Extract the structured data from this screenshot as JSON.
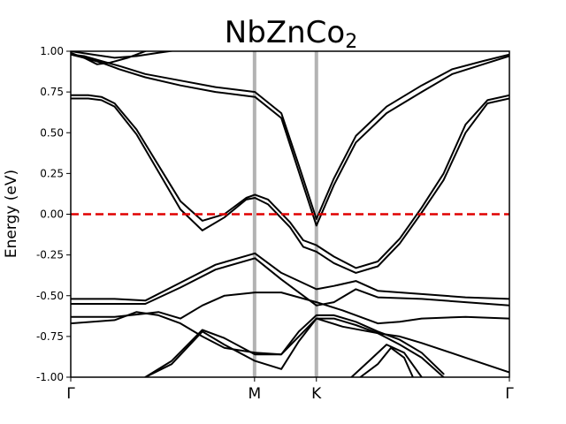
{
  "chart_data": {
    "type": "line",
    "title": "NbZnCo",
    "title_subscript": "2",
    "ylabel": "Energy (eV)",
    "ylim": [
      -1.0,
      1.0
    ],
    "yticks": [
      "-1.00",
      "-0.75",
      "-0.50",
      "-0.25",
      "0.00",
      "0.25",
      "0.50",
      "0.75",
      "1.00"
    ],
    "ytick_values": [
      -1.0,
      -0.75,
      -0.5,
      -0.25,
      0.0,
      0.25,
      0.5,
      0.75,
      1.0
    ],
    "xlim": [
      0,
      1
    ],
    "high_symmetry_points": [
      {
        "label": "Γ",
        "x": 0.0
      },
      {
        "label": "M",
        "x": 0.419
      },
      {
        "label": "K",
        "x": 0.56
      },
      {
        "label": "Γ",
        "x": 1.0
      }
    ],
    "fermi_level": 0.0,
    "colors": {
      "bands": "#000000",
      "fermi": "#e00000",
      "kpath": "#b3b3b3"
    },
    "grid": false,
    "series": [
      {
        "x": [
          0.0,
          0.05,
          0.1,
          0.15,
          0.2,
          0.25,
          0.3,
          0.35,
          0.4,
          0.42
        ],
        "values": [
          1.0,
          0.98,
          0.96,
          0.97,
          0.99,
          1.01,
          1.02,
          1.02,
          1.01,
          1.02
        ]
      },
      {
        "x": [
          0.0,
          0.03,
          0.06,
          0.09,
          0.13,
          0.17
        ],
        "values": [
          0.99,
          0.96,
          0.92,
          0.93,
          0.96,
          1.0
        ]
      },
      {
        "x": [
          0.0,
          0.03,
          0.07,
          0.11,
          0.17,
          0.25,
          0.33,
          0.42,
          0.48,
          0.52,
          0.56,
          0.6,
          0.65,
          0.72,
          0.8,
          0.87,
          0.94,
          1.0
        ],
        "values": [
          0.98,
          0.97,
          0.94,
          0.91,
          0.86,
          0.82,
          0.78,
          0.75,
          0.62,
          0.3,
          -0.03,
          0.22,
          0.48,
          0.66,
          0.79,
          0.89,
          0.94,
          0.98
        ]
      },
      {
        "x": [
          0.0,
          0.03,
          0.07,
          0.11,
          0.17,
          0.25,
          0.33,
          0.42,
          0.48,
          0.52,
          0.56,
          0.6,
          0.65,
          0.72,
          0.8,
          0.87,
          0.94,
          1.0
        ],
        "values": [
          0.98,
          0.96,
          0.93,
          0.89,
          0.84,
          0.79,
          0.75,
          0.72,
          0.59,
          0.26,
          -0.07,
          0.18,
          0.44,
          0.62,
          0.75,
          0.86,
          0.92,
          0.97
        ]
      },
      {
        "x": [
          0.0,
          0.04,
          0.07,
          0.1,
          0.15,
          0.2,
          0.25,
          0.3,
          0.35,
          0.4,
          0.42,
          0.45,
          0.5,
          0.53,
          0.56,
          0.6,
          0.65,
          0.7,
          0.75,
          0.8,
          0.85,
          0.9,
          0.95,
          1.0
        ],
        "values": [
          0.73,
          0.73,
          0.72,
          0.68,
          0.52,
          0.3,
          0.08,
          -0.04,
          0.0,
          0.1,
          0.12,
          0.09,
          -0.05,
          -0.16,
          -0.19,
          -0.26,
          -0.33,
          -0.29,
          -0.15,
          0.04,
          0.25,
          0.55,
          0.7,
          0.73
        ]
      },
      {
        "x": [
          0.0,
          0.04,
          0.07,
          0.1,
          0.15,
          0.2,
          0.25,
          0.3,
          0.35,
          0.4,
          0.42,
          0.45,
          0.5,
          0.53,
          0.56,
          0.6,
          0.65,
          0.7,
          0.75,
          0.8,
          0.85,
          0.9,
          0.95,
          1.0
        ],
        "values": [
          0.71,
          0.71,
          0.7,
          0.66,
          0.49,
          0.26,
          0.03,
          -0.1,
          -0.02,
          0.09,
          0.1,
          0.06,
          -0.08,
          -0.2,
          -0.23,
          -0.3,
          -0.36,
          -0.32,
          -0.18,
          0.01,
          0.21,
          0.5,
          0.68,
          0.71
        ]
      },
      {
        "x": [
          0.0,
          0.1,
          0.17,
          0.25,
          0.33,
          0.42,
          0.48,
          0.56,
          0.6,
          0.65,
          0.7,
          0.8,
          0.9,
          1.0
        ],
        "values": [
          -0.52,
          -0.52,
          -0.53,
          -0.42,
          -0.31,
          -0.24,
          -0.36,
          -0.46,
          -0.44,
          -0.41,
          -0.47,
          -0.49,
          -0.51,
          -0.52
        ]
      },
      {
        "x": [
          0.0,
          0.1,
          0.17,
          0.25,
          0.33,
          0.42,
          0.48,
          0.56,
          0.6,
          0.65,
          0.7,
          0.8,
          0.9,
          1.0
        ],
        "values": [
          -0.55,
          -0.55,
          -0.55,
          -0.45,
          -0.34,
          -0.27,
          -0.4,
          -0.56,
          -0.54,
          -0.46,
          -0.51,
          -0.52,
          -0.54,
          -0.56
        ]
      },
      {
        "x": [
          0.0,
          0.1,
          0.17,
          0.2,
          0.25,
          0.3,
          0.35,
          0.42,
          0.48,
          0.56,
          0.62,
          0.7,
          0.75,
          0.8,
          0.9,
          1.0
        ],
        "values": [
          -0.63,
          -0.63,
          -0.61,
          -0.6,
          -0.64,
          -0.56,
          -0.5,
          -0.48,
          -0.48,
          -0.54,
          -0.59,
          -0.67,
          -0.66,
          -0.64,
          -0.63,
          -0.64
        ]
      },
      {
        "x": [
          0.0,
          0.1,
          0.15,
          0.2,
          0.25,
          0.3,
          0.35,
          0.42,
          0.48,
          0.56,
          0.62,
          0.7,
          0.75,
          0.8,
          0.9,
          1.0
        ],
        "values": [
          -0.67,
          -0.65,
          -0.6,
          -0.62,
          -0.67,
          -0.75,
          -0.82,
          -0.85,
          -0.86,
          -0.64,
          -0.69,
          -0.73,
          -0.75,
          -0.79,
          -0.88,
          -0.97
        ]
      },
      {
        "x": [
          0.17,
          0.23,
          0.3,
          0.35,
          0.42,
          0.48,
          0.52,
          0.56,
          0.6,
          0.65,
          0.7,
          0.75,
          0.8,
          0.85
        ],
        "values": [
          -1.0,
          -0.9,
          -0.71,
          -0.76,
          -0.86,
          -0.86,
          -0.72,
          -0.62,
          -0.62,
          -0.66,
          -0.72,
          -0.77,
          -0.85,
          -0.98
        ]
      },
      {
        "x": [
          0.17,
          0.23,
          0.3,
          0.35,
          0.42,
          0.48,
          0.52,
          0.56,
          0.6,
          0.65,
          0.7,
          0.75,
          0.8,
          0.85
        ],
        "values": [
          -1.0,
          -0.92,
          -0.72,
          -0.8,
          -0.9,
          -0.95,
          -0.78,
          -0.64,
          -0.64,
          -0.68,
          -0.73,
          -0.8,
          -0.88,
          -1.0
        ]
      },
      {
        "x": [
          0.64,
          0.68,
          0.72,
          0.76,
          0.8
        ],
        "values": [
          -1.0,
          -0.9,
          -0.8,
          -0.85,
          -1.0
        ]
      },
      {
        "x": [
          0.66,
          0.7,
          0.73,
          0.76,
          0.78
        ],
        "values": [
          -1.0,
          -0.92,
          -0.82,
          -0.88,
          -1.0
        ]
      }
    ]
  }
}
